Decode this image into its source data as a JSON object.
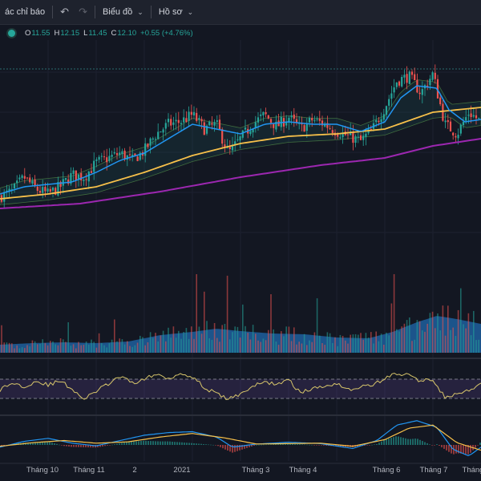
{
  "toolbar": {
    "indicators_label": "ác chỉ báo",
    "chart_label": "Biểu đồ",
    "profile_label": "Hồ sơ"
  },
  "legend": {
    "o_key": "O",
    "o_val": "11.55",
    "h_key": "H",
    "h_val": "12.15",
    "l_key": "L",
    "l_val": "11.45",
    "c_key": "C",
    "c_val": "12.10",
    "change": "+0.55 (+4.76%)"
  },
  "colors": {
    "background": "#131722",
    "up": "#26a69a",
    "down": "#ef5350",
    "ma_fast": "#2196f3",
    "ma_mid": "#f7c04a",
    "ma_slow": "#9c27b0",
    "volume_ma_fill": "#1e5f9e",
    "rsi_line": "#d8c66b",
    "macd_line": "#2196f3",
    "signal_line": "#f7c04a"
  },
  "icons": {
    "undo": "undo-arrow-icon",
    "redo": "redo-arrow-icon",
    "chevron": "chevron-down-icon",
    "status": "status-dot-icon"
  },
  "time_axis": {
    "labels": [
      "Tháng 10",
      "Tháng 11",
      "2",
      "2021",
      "Tháng 3",
      "Tháng 4",
      "Tháng 6",
      "Tháng 7",
      "Tháng"
    ]
  },
  "chart_data": {
    "type": "candlestick",
    "price_range": [
      5.5,
      15.0
    ],
    "price_path": [
      [
        0,
        8.5
      ],
      [
        15,
        8.7
      ],
      [
        30,
        9.3
      ],
      [
        45,
        8.8
      ],
      [
        60,
        8.6
      ],
      [
        75,
        8.9
      ],
      [
        90,
        9.4
      ],
      [
        105,
        9.3
      ],
      [
        120,
        9.9
      ],
      [
        135,
        10.1
      ],
      [
        150,
        10.3
      ],
      [
        165,
        10.0
      ],
      [
        180,
        10.4
      ],
      [
        195,
        11.1
      ],
      [
        210,
        11.5
      ],
      [
        225,
        11.6
      ],
      [
        240,
        11.9
      ],
      [
        255,
        11.3
      ],
      [
        270,
        11.5
      ],
      [
        285,
        10.3
      ],
      [
        300,
        10.9
      ],
      [
        315,
        11.5
      ],
      [
        330,
        11.9
      ],
      [
        345,
        11.4
      ],
      [
        360,
        11.8
      ],
      [
        375,
        11.3
      ],
      [
        390,
        11.7
      ],
      [
        405,
        11.5
      ],
      [
        420,
        11.2
      ],
      [
        435,
        11.0
      ],
      [
        450,
        10.8
      ],
      [
        465,
        11.3
      ],
      [
        480,
        12.2
      ],
      [
        495,
        13.3
      ],
      [
        510,
        13.5
      ],
      [
        525,
        12.8
      ],
      [
        540,
        13.6
      ],
      [
        555,
        11.5
      ],
      [
        570,
        11.1
      ],
      [
        585,
        12.0
      ],
      [
        600,
        11.6
      ]
    ],
    "ma_fast": [
      [
        0,
        8.6
      ],
      [
        30,
        8.9
      ],
      [
        60,
        9.0
      ],
      [
        90,
        9.1
      ],
      [
        120,
        9.5
      ],
      [
        150,
        10.0
      ],
      [
        180,
        10.3
      ],
      [
        210,
        10.9
      ],
      [
        240,
        11.5
      ],
      [
        270,
        11.3
      ],
      [
        300,
        11.1
      ],
      [
        330,
        11.5
      ],
      [
        360,
        11.6
      ],
      [
        390,
        11.5
      ],
      [
        420,
        11.5
      ],
      [
        450,
        11.2
      ],
      [
        480,
        11.6
      ],
      [
        500,
        12.6
      ],
      [
        520,
        13.1
      ],
      [
        545,
        13.0
      ],
      [
        560,
        12.1
      ],
      [
        580,
        11.6
      ],
      [
        600,
        11.7
      ]
    ],
    "ma_mid": [
      [
        0,
        8.4
      ],
      [
        60,
        8.6
      ],
      [
        120,
        8.9
      ],
      [
        180,
        9.5
      ],
      [
        240,
        10.2
      ],
      [
        300,
        10.7
      ],
      [
        360,
        11.0
      ],
      [
        420,
        11.1
      ],
      [
        480,
        11.3
      ],
      [
        540,
        12.0
      ],
      [
        600,
        12.2
      ]
    ],
    "ma_slow": [
      [
        0,
        8.0
      ],
      [
        100,
        8.2
      ],
      [
        200,
        8.7
      ],
      [
        300,
        9.3
      ],
      [
        400,
        9.8
      ],
      [
        480,
        10.1
      ],
      [
        540,
        10.6
      ],
      [
        600,
        10.9
      ]
    ],
    "horizontal_level": 13.8,
    "volume_ma": [
      [
        0,
        0.1
      ],
      [
        40,
        0.12
      ],
      [
        80,
        0.13
      ],
      [
        120,
        0.12
      ],
      [
        160,
        0.14
      ],
      [
        200,
        0.22
      ],
      [
        240,
        0.26
      ],
      [
        270,
        0.3
      ],
      [
        300,
        0.27
      ],
      [
        340,
        0.24
      ],
      [
        380,
        0.23
      ],
      [
        420,
        0.19
      ],
      [
        460,
        0.18
      ],
      [
        490,
        0.26
      ],
      [
        520,
        0.38
      ],
      [
        545,
        0.46
      ],
      [
        570,
        0.42
      ],
      [
        600,
        0.36
      ]
    ],
    "rsi": [
      [
        0,
        48
      ],
      [
        15,
        62
      ],
      [
        30,
        55
      ],
      [
        45,
        66
      ],
      [
        60,
        58
      ],
      [
        75,
        66
      ],
      [
        90,
        50
      ],
      [
        105,
        28
      ],
      [
        120,
        45
      ],
      [
        135,
        60
      ],
      [
        150,
        75
      ],
      [
        165,
        62
      ],
      [
        180,
        70
      ],
      [
        195,
        80
      ],
      [
        210,
        72
      ],
      [
        225,
        82
      ],
      [
        240,
        76
      ],
      [
        255,
        52
      ],
      [
        270,
        40
      ],
      [
        285,
        28
      ],
      [
        300,
        40
      ],
      [
        315,
        55
      ],
      [
        330,
        64
      ],
      [
        345,
        60
      ],
      [
        360,
        68
      ],
      [
        375,
        42
      ],
      [
        390,
        50
      ],
      [
        405,
        56
      ],
      [
        420,
        62
      ],
      [
        435,
        48
      ],
      [
        450,
        54
      ],
      [
        465,
        58
      ],
      [
        480,
        72
      ],
      [
        495,
        82
      ],
      [
        510,
        78
      ],
      [
        525,
        66
      ],
      [
        540,
        70
      ],
      [
        555,
        32
      ],
      [
        570,
        38
      ],
      [
        585,
        46
      ],
      [
        600,
        58
      ]
    ],
    "rsi_bands": [
      70,
      30
    ],
    "macd": [
      [
        0,
        -0.05
      ],
      [
        30,
        0.08
      ],
      [
        60,
        0.15
      ],
      [
        90,
        0.04
      ],
      [
        120,
        -0.02
      ],
      [
        150,
        0.1
      ],
      [
        180,
        0.22
      ],
      [
        210,
        0.28
      ],
      [
        240,
        0.3
      ],
      [
        270,
        0.18
      ],
      [
        290,
        -0.05
      ],
      [
        320,
        0.02
      ],
      [
        360,
        0.06
      ],
      [
        400,
        0.03
      ],
      [
        440,
        -0.08
      ],
      [
        470,
        0.1
      ],
      [
        495,
        0.45
      ],
      [
        520,
        0.55
      ],
      [
        545,
        0.4
      ],
      [
        565,
        -0.1
      ],
      [
        585,
        -0.25
      ],
      [
        600,
        -0.05
      ]
    ],
    "signal": [
      [
        0,
        -0.03
      ],
      [
        40,
        0.05
      ],
      [
        80,
        0.1
      ],
      [
        120,
        0.04
      ],
      [
        160,
        0.07
      ],
      [
        200,
        0.18
      ],
      [
        240,
        0.26
      ],
      [
        280,
        0.16
      ],
      [
        320,
        0.02
      ],
      [
        360,
        0.03
      ],
      [
        400,
        0.04
      ],
      [
        440,
        -0.03
      ],
      [
        480,
        0.12
      ],
      [
        510,
        0.38
      ],
      [
        540,
        0.45
      ],
      [
        570,
        0.05
      ],
      [
        600,
        -0.12
      ]
    ]
  }
}
